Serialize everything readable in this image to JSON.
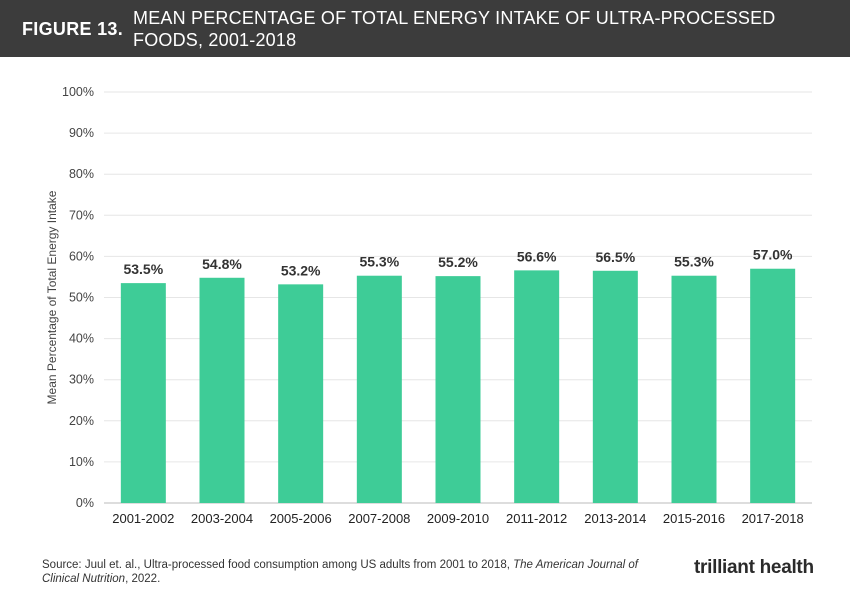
{
  "header": {
    "figure_label": "FIGURE 13.",
    "title": "MEAN PERCENTAGE OF TOTAL ENERGY INTAKE OF ULTRA-PROCESSED FOODS, 2001-2018"
  },
  "chart_data": {
    "type": "bar",
    "title": "MEAN PERCENTAGE OF TOTAL ENERGY INTAKE OF ULTRA-PROCESSED FOODS, 2001-2018",
    "xlabel": "",
    "ylabel": "Mean Percentage of Total Energy Intake",
    "ylim": [
      0,
      100
    ],
    "yticks": [
      0,
      10,
      20,
      30,
      40,
      50,
      60,
      70,
      80,
      90,
      100
    ],
    "ytick_labels": [
      "0%",
      "10%",
      "20%",
      "30%",
      "40%",
      "50%",
      "60%",
      "70%",
      "80%",
      "90%",
      "100%"
    ],
    "categories": [
      "2001-2002",
      "2003-2004",
      "2005-2006",
      "2007-2008",
      "2009-2010",
      "2011-2012",
      "2013-2014",
      "2015-2016",
      "2017-2018"
    ],
    "values": [
      53.5,
      54.8,
      53.2,
      55.3,
      55.2,
      56.6,
      56.5,
      55.3,
      57.0
    ],
    "data_labels": [
      "53.5%",
      "54.8%",
      "53.2%",
      "55.3%",
      "55.2%",
      "56.6%",
      "56.5%",
      "55.3%",
      "57.0%"
    ],
    "bar_color": "#3ecc97",
    "grid": true
  },
  "footer": {
    "source_prefix": "Source: Juul et. al., Ultra-processed food consumption among US adults from 2001 to 2018, ",
    "source_journal": "The American Journal of Clinical Nutrition",
    "source_suffix": ", 2022.",
    "logo_text": "trilliant health"
  }
}
